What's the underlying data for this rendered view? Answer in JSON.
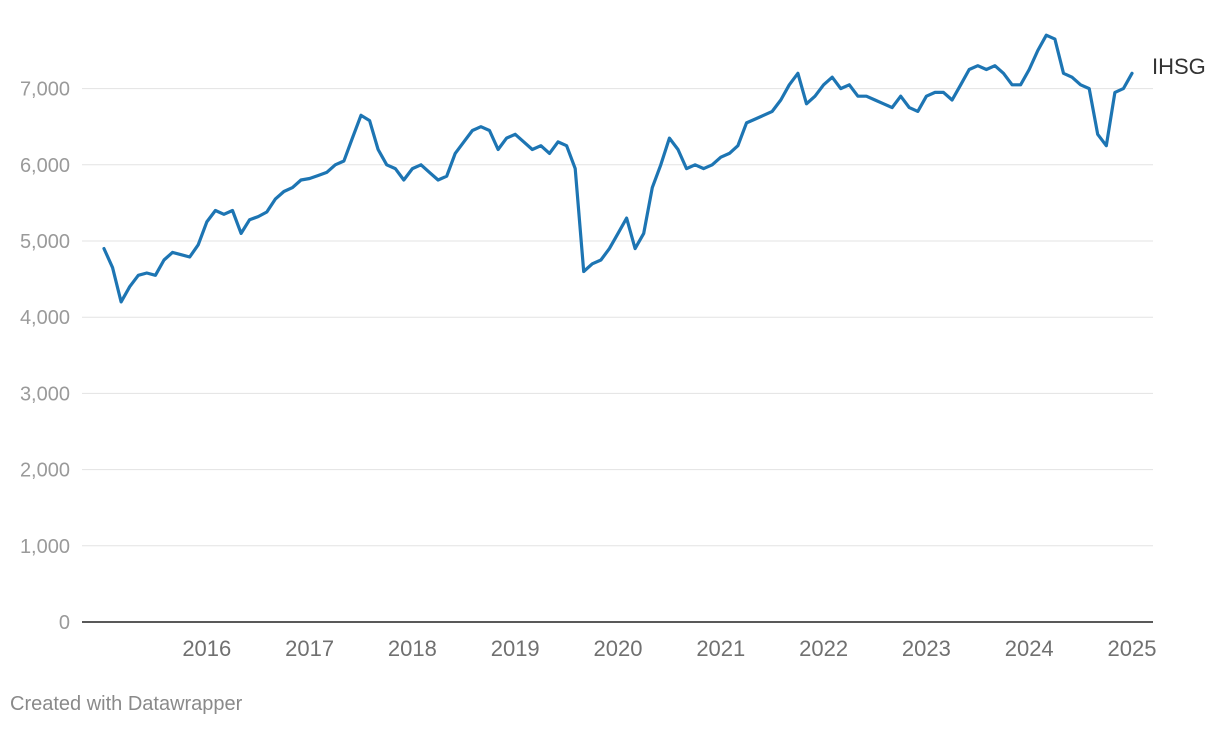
{
  "chart_data": {
    "type": "line",
    "series": [
      {
        "name": "IHSG",
        "color": "#1d75b3",
        "x": [
          "2015-07",
          "2015-08",
          "2015-09",
          "2015-10",
          "2015-11",
          "2015-12",
          "2016-01",
          "2016-02",
          "2016-03",
          "2016-04",
          "2016-05",
          "2016-06",
          "2016-07",
          "2016-08",
          "2016-09",
          "2016-10",
          "2016-11",
          "2016-12",
          "2017-01",
          "2017-02",
          "2017-03",
          "2017-04",
          "2017-05",
          "2017-06",
          "2017-07",
          "2017-08",
          "2017-09",
          "2017-10",
          "2017-11",
          "2017-12",
          "2018-01",
          "2018-02",
          "2018-03",
          "2018-04",
          "2018-05",
          "2018-06",
          "2018-07",
          "2018-08",
          "2018-09",
          "2018-10",
          "2018-11",
          "2018-12",
          "2019-01",
          "2019-02",
          "2019-03",
          "2019-04",
          "2019-05",
          "2019-06",
          "2019-07",
          "2019-08",
          "2019-09",
          "2019-10",
          "2019-11",
          "2019-12",
          "2020-01",
          "2020-02",
          "2020-03",
          "2020-04",
          "2020-05",
          "2020-06",
          "2020-07",
          "2020-08",
          "2020-09",
          "2020-10",
          "2020-11",
          "2020-12",
          "2021-01",
          "2021-02",
          "2021-03",
          "2021-04",
          "2021-05",
          "2021-06",
          "2021-07",
          "2021-08",
          "2021-09",
          "2021-10",
          "2021-11",
          "2021-12",
          "2022-01",
          "2022-02",
          "2022-03",
          "2022-04",
          "2022-05",
          "2022-06",
          "2022-07",
          "2022-08",
          "2022-09",
          "2022-10",
          "2022-11",
          "2022-12",
          "2023-01",
          "2023-02",
          "2023-03",
          "2023-04",
          "2023-05",
          "2023-06",
          "2023-07",
          "2023-08",
          "2023-09",
          "2023-10",
          "2023-11",
          "2023-12",
          "2024-01",
          "2024-02",
          "2024-03",
          "2024-04",
          "2024-05",
          "2024-06",
          "2024-07",
          "2024-08",
          "2024-09",
          "2024-10",
          "2024-11",
          "2024-12",
          "2025-01",
          "2025-02",
          "2025-03",
          "2025-04",
          "2025-05",
          "2025-06",
          "2025-07"
        ],
        "values": [
          4900,
          4650,
          4200,
          4400,
          4550,
          4580,
          4550,
          4750,
          4850,
          4820,
          4790,
          4950,
          5250,
          5400,
          5350,
          5400,
          5100,
          5280,
          5320,
          5380,
          5550,
          5650,
          5700,
          5800,
          5820,
          5860,
          5900,
          6000,
          6050,
          6350,
          6650,
          6580,
          6200,
          6000,
          5950,
          5800,
          5950,
          6000,
          5900,
          5800,
          5850,
          6150,
          6300,
          6450,
          6500,
          6450,
          6200,
          6350,
          6400,
          6300,
          6200,
          6250,
          6150,
          6300,
          6250,
          5950,
          4600,
          4700,
          4750,
          4900,
          5100,
          5300,
          4900,
          5100,
          5700,
          6000,
          6350,
          6200,
          5950,
          6000,
          5950,
          6000,
          6100,
          6150,
          6250,
          6550,
          6600,
          6650,
          6700,
          6850,
          7050,
          7200,
          6800,
          6900,
          7050,
          7150,
          7000,
          7050,
          6900,
          6900,
          6850,
          6800,
          6750,
          6900,
          6750,
          6700,
          6900,
          6950,
          6950,
          6850,
          7050,
          7250,
          7300,
          7250,
          7300,
          7200,
          7050,
          7050,
          7250,
          7500,
          7700,
          7650,
          7200,
          7150,
          7050,
          7000,
          6400,
          6250,
          6950,
          7000,
          7200
        ]
      }
    ],
    "xticks": [
      "2016",
      "2017",
      "2018",
      "2019",
      "2020",
      "2021",
      "2022",
      "2023",
      "2024",
      "2025"
    ],
    "yticks": [
      0,
      1000,
      2000,
      3000,
      4000,
      5000,
      6000,
      7000
    ],
    "ytick_labels": [
      "0",
      "1,000",
      "2,000",
      "3,000",
      "4,000",
      "5,000",
      "6,000",
      "7,000"
    ],
    "ylim": [
      0,
      7900
    ],
    "x_range": [
      "2015-07",
      "2025-07"
    ],
    "grid": true,
    "legend": "inline-end-label",
    "title": "",
    "xlabel": "",
    "ylabel": ""
  },
  "footer": {
    "credit": "Created with Datawrapper"
  }
}
